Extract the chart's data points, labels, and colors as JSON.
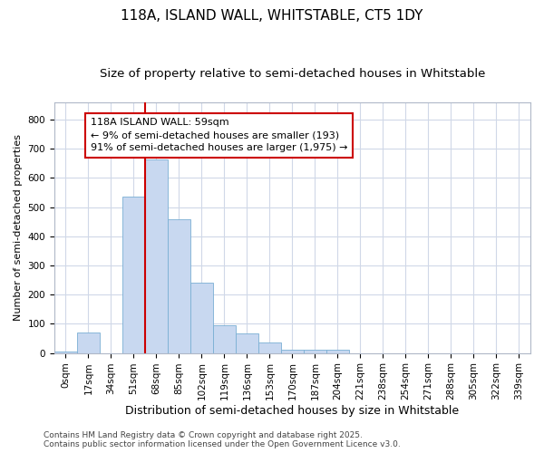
{
  "title": "118A, ISLAND WALL, WHITSTABLE, CT5 1DY",
  "subtitle": "Size of property relative to semi-detached houses in Whitstable",
  "xlabel": "Distribution of semi-detached houses by size in Whitstable",
  "ylabel": "Number of semi-detached properties",
  "categories": [
    "0sqm",
    "17sqm",
    "34sqm",
    "51sqm",
    "68sqm",
    "85sqm",
    "102sqm",
    "119sqm",
    "136sqm",
    "153sqm",
    "170sqm",
    "187sqm",
    "204sqm",
    "221sqm",
    "238sqm",
    "254sqm",
    "271sqm",
    "288sqm",
    "305sqm",
    "322sqm",
    "339sqm"
  ],
  "values": [
    5,
    70,
    0,
    535,
    665,
    460,
    240,
    95,
    68,
    35,
    12,
    12,
    10,
    0,
    0,
    0,
    0,
    0,
    0,
    0,
    0
  ],
  "bar_color": "#c8d8f0",
  "bar_edgecolor": "#7aafd4",
  "redline_x": 4.0,
  "annotation_text": "118A ISLAND WALL: 59sqm\n← 9% of semi-detached houses are smaller (193)\n91% of semi-detached houses are larger (1,975) →",
  "annotation_box_facecolor": "#ffffff",
  "annotation_box_edgecolor": "#cc0000",
  "ylim": [
    0,
    860
  ],
  "yticks": [
    0,
    100,
    200,
    300,
    400,
    500,
    600,
    700,
    800
  ],
  "footer": "Contains HM Land Registry data © Crown copyright and database right 2025.\nContains public sector information licensed under the Open Government Licence v3.0.",
  "bg_color": "#ffffff",
  "plot_bg_color": "#ffffff",
  "grid_color": "#d0d8e8",
  "title_fontsize": 11,
  "subtitle_fontsize": 9.5,
  "xlabel_fontsize": 9,
  "ylabel_fontsize": 8,
  "tick_fontsize": 7.5,
  "footer_fontsize": 6.5,
  "annot_fontsize": 8
}
